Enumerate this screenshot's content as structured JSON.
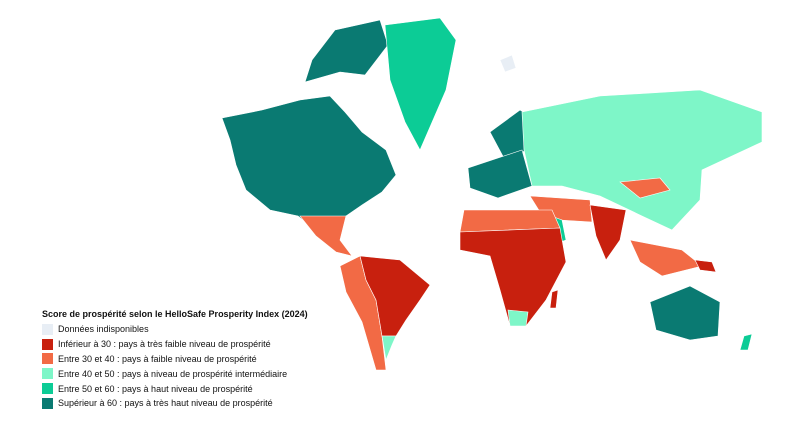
{
  "legend": {
    "title": "Score de prospérité selon le HelloSafe Prosperity Index (2024)",
    "items": [
      {
        "label": "Données indisponibles",
        "color": "#e8eef5"
      },
      {
        "label": "Inférieur à 30 : pays à très faible niveau de prospérité",
        "color": "#c8200e"
      },
      {
        "label": "Entre 30 et 40 : pays à faible niveau de prospérité",
        "color": "#f26a45"
      },
      {
        "label": "Entre 40 et 50 : pays à niveau de prospérité intermédiaire",
        "color": "#7ef6c8"
      },
      {
        "label": "Entre 50 et 60 : pays à haut niveau de prospérité",
        "color": "#0ccc96"
      },
      {
        "label": "Supérieur à 60 : pays à très haut niveau de prospérité",
        "color": "#0a7a72"
      }
    ]
  }
}
